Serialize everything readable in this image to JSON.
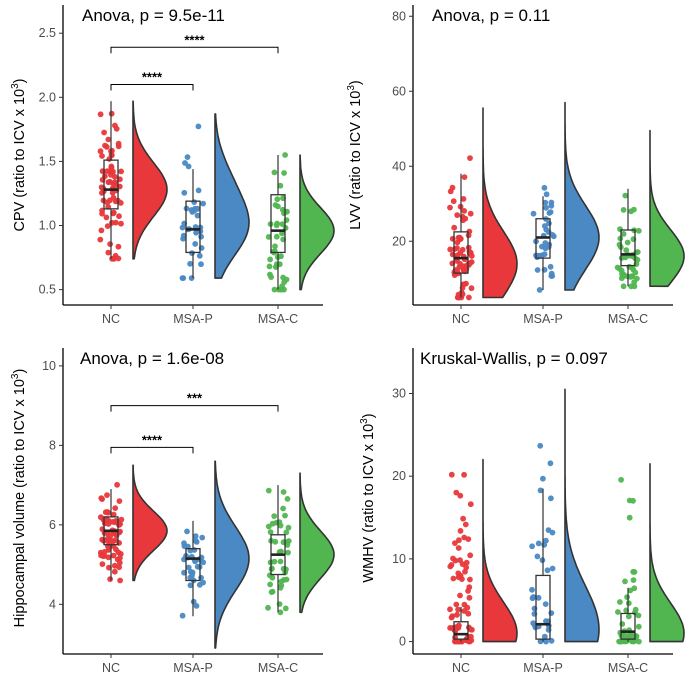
{
  "chart_data": [
    {
      "type": "raincloud",
      "title": "Anova, p = 9.5e-11",
      "ylabel": "CPV (ratio to ICV x 10",
      "ylabel_sup": "3",
      "ylabel_close": ")",
      "categories": [
        "NC",
        "MSA-P",
        "MSA-C"
      ],
      "ylim": [
        0.38,
        2.72
      ],
      "yticks": [
        0.5,
        1.0,
        1.5,
        2.0,
        2.5
      ],
      "ytick_labels": [
        "0.5",
        "1.0",
        "1.5",
        "2.0",
        "2.5"
      ],
      "box": [
        {
          "min": 0.74,
          "q1": 1.13,
          "median": 1.28,
          "q3": 1.51,
          "max": 1.97
        },
        {
          "min": 0.59,
          "q1": 0.79,
          "median": 0.97,
          "q3": 1.19,
          "max": 1.44
        },
        {
          "min": 0.5,
          "q1": 0.79,
          "median": 0.96,
          "q3": 1.24,
          "max": 1.55
        }
      ],
      "ranges": [
        [
          0.74,
          1.97
        ],
        [
          0.59,
          1.87
        ],
        [
          0.5,
          1.55
        ]
      ],
      "modes": [
        [
          1.28
        ],
        [
          0.97,
          1.32
        ],
        [
          0.96
        ]
      ],
      "point_counts": [
        70,
        35,
        45
      ],
      "comparisons": [
        {
          "from": "NC",
          "to": "MSA-P",
          "label": "****",
          "y": 2.1
        },
        {
          "from": "NC",
          "to": "MSA-C",
          "label": "****",
          "y": 2.39
        }
      ]
    },
    {
      "type": "raincloud",
      "title": "Anova, p = 0.11",
      "ylabel": "LVV (ratio to ICV x 10",
      "ylabel_sup": "3",
      "ylabel_close": ")",
      "categories": [
        "NC",
        "MSA-P",
        "MSA-C"
      ],
      "ylim": [
        3,
        83
      ],
      "yticks": [
        20,
        40,
        60,
        80
      ],
      "ytick_labels": [
        "20",
        "40",
        "60",
        "80"
      ],
      "box": [
        {
          "min": 5,
          "q1": 11.5,
          "median": 15.5,
          "q3": 22.5,
          "max": 38
        },
        {
          "min": 7,
          "q1": 15.5,
          "median": 21,
          "q3": 26,
          "max": 32
        },
        {
          "min": 8,
          "q1": 13.5,
          "median": 16.5,
          "q3": 23,
          "max": 34
        }
      ],
      "ranges": [
        [
          5,
          55.5
        ],
        [
          7,
          57
        ],
        [
          8,
          49.5
        ]
      ],
      "modes": [
        [
          14
        ],
        [
          21
        ],
        [
          16
        ]
      ],
      "point_counts": [
        70,
        35,
        45
      ],
      "comparisons": []
    },
    {
      "type": "raincloud",
      "title": "Anova, p = 1.6e-08",
      "ylabel": "Hippocampal volume (ratio to ICV x 10",
      "ylabel_sup": "3",
      "ylabel_close": ")",
      "categories": [
        "NC",
        "MSA-P",
        "MSA-C"
      ],
      "ylim": [
        2.75,
        10.45
      ],
      "yticks": [
        4,
        6,
        8,
        10
      ],
      "ytick_labels": [
        "4",
        "6",
        "8",
        "10"
      ],
      "box": [
        {
          "min": 4.6,
          "q1": 5.5,
          "median": 5.85,
          "q3": 6.2,
          "max": 6.9
        },
        {
          "min": 3.7,
          "q1": 4.6,
          "median": 5.15,
          "q3": 5.4,
          "max": 6.1
        },
        {
          "min": 3.8,
          "q1": 4.75,
          "median": 5.25,
          "q3": 5.75,
          "max": 7.0
        }
      ],
      "ranges": [
        [
          4.6,
          7.5
        ],
        [
          2.9,
          7.6
        ],
        [
          3.8,
          7.3
        ]
      ],
      "modes": [
        [
          5.85
        ],
        [
          5.15
        ],
        [
          5.25
        ]
      ],
      "point_counts": [
        70,
        35,
        45
      ],
      "comparisons": [
        {
          "from": "NC",
          "to": "MSA-P",
          "label": "****",
          "y": 7.95
        },
        {
          "from": "NC",
          "to": "MSA-C",
          "label": "***",
          "y": 9.0
        }
      ]
    },
    {
      "type": "raincloud",
      "title": "Kruskal-Wallis, p = 0.097",
      "ylabel": "WMHV (ratio to ICV x 10",
      "ylabel_sup": "3",
      "ylabel_close": ")",
      "categories": [
        "NC",
        "MSA-P",
        "MSA-C"
      ],
      "ylim": [
        -1.5,
        35.5
      ],
      "yticks": [
        0,
        10,
        20,
        30
      ],
      "ytick_labels": [
        "0",
        "10",
        "20",
        "30"
      ],
      "box": [
        {
          "min": 0,
          "q1": 0.3,
          "median": 0.9,
          "q3": 2.4,
          "max": 4.2
        },
        {
          "min": 0,
          "q1": 0.3,
          "median": 2.1,
          "q3": 8.0,
          "max": 18.5
        },
        {
          "min": 0,
          "q1": 0.3,
          "median": 1.2,
          "q3": 3.4,
          "max": 6.5
        }
      ],
      "ranges": [
        [
          0,
          22
        ],
        [
          0,
          30.5
        ],
        [
          0,
          21.5
        ]
      ],
      "modes": [
        [
          1
        ],
        [
          1.5
        ],
        [
          1
        ]
      ],
      "point_counts": [
        70,
        35,
        45
      ],
      "comparisons": []
    }
  ],
  "colors": {
    "NC": "#e8383b",
    "MSA-P": "#4a89c4",
    "MSA-C": "#51b550",
    "box_stroke": "#333333",
    "axis": "#000000"
  }
}
